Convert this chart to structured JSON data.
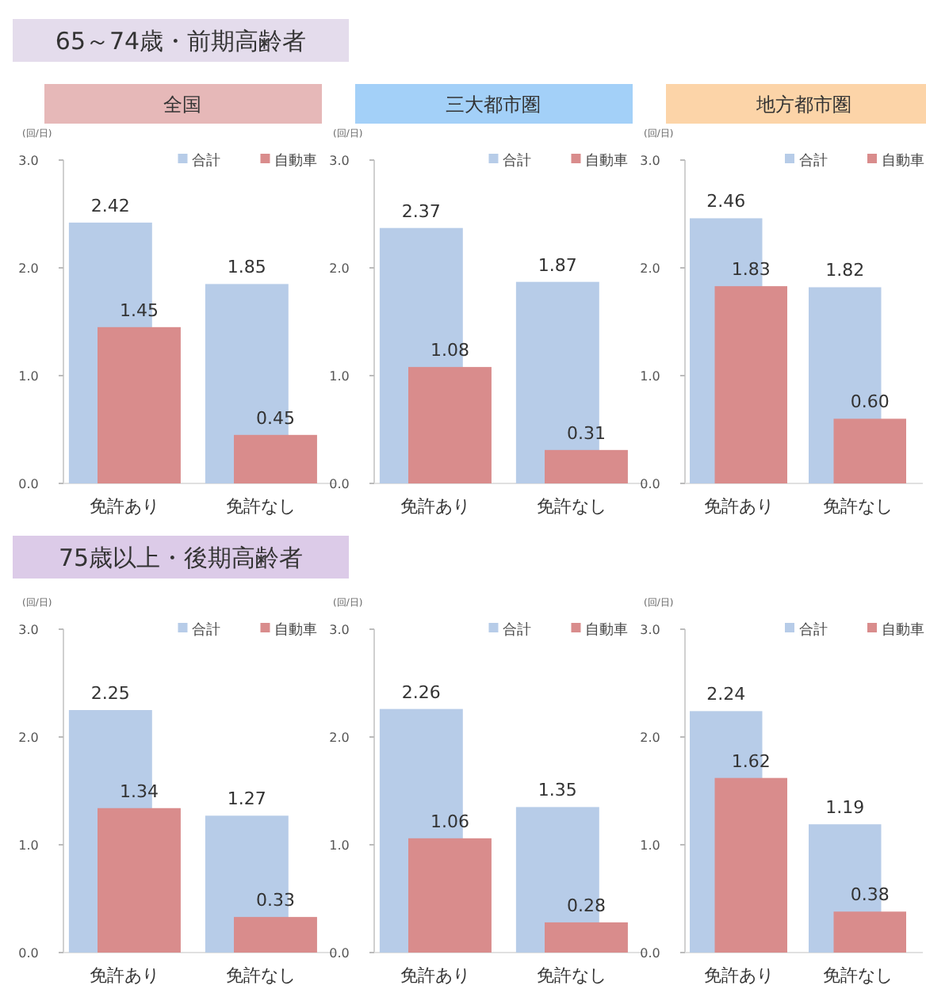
{
  "chart_data": [
    {
      "type": "bar",
      "title": "全国",
      "annotations": [
        "65～74歳・前期高齢者"
      ],
      "ylabel": "(回/日)",
      "categories": [
        "免許あり",
        "免許なし"
      ],
      "ylim": [
        0,
        3
      ],
      "yticks": [
        {
          "value": 0,
          "label": "0.0"
        },
        {
          "value": 1,
          "label": "1.0"
        },
        {
          "value": 2,
          "label": "2.0"
        },
        {
          "value": 3,
          "label": "3.0"
        }
      ],
      "legend": "top right",
      "series": [
        {
          "name": "合計",
          "color": "#b7cce8",
          "values": [
            2.42,
            1.85
          ],
          "value_labels": [
            "2.42",
            "1.85"
          ]
        },
        {
          "name": "自動車",
          "color": "#d98c8c",
          "values": [
            1.45,
            0.45
          ],
          "value_labels": [
            "1.45",
            "0.45"
          ]
        }
      ]
    },
    {
      "type": "bar",
      "title": "三大都市圏",
      "ylabel": "(回/日)",
      "categories": [
        "免許あり",
        "免許なし"
      ],
      "ylim": [
        0,
        3
      ],
      "yticks": [
        {
          "value": 0,
          "label": "0.0"
        },
        {
          "value": 1,
          "label": "1.0"
        },
        {
          "value": 2,
          "label": "2.0"
        },
        {
          "value": 3,
          "label": "3.0"
        }
      ],
      "legend": "top right",
      "series": [
        {
          "name": "合計",
          "color": "#b7cce8",
          "values": [
            2.37,
            1.87
          ],
          "value_labels": [
            "2.37",
            "1.87"
          ]
        },
        {
          "name": "自動車",
          "color": "#d98c8c",
          "values": [
            1.08,
            0.31
          ],
          "value_labels": [
            "1.08",
            "0.31"
          ]
        }
      ]
    },
    {
      "type": "bar",
      "title": "地方都市圏",
      "ylabel": "(回/日)",
      "categories": [
        "免許あり",
        "免許なし"
      ],
      "ylim": [
        0,
        3
      ],
      "yticks": [
        {
          "value": 0,
          "label": "0.0"
        },
        {
          "value": 1,
          "label": "1.0"
        },
        {
          "value": 2,
          "label": "2.0"
        },
        {
          "value": 3,
          "label": "3.0"
        }
      ],
      "legend": "top right",
      "series": [
        {
          "name": "合計",
          "color": "#b7cce8",
          "values": [
            2.46,
            1.82
          ],
          "value_labels": [
            "2.46",
            "1.82"
          ]
        },
        {
          "name": "自動車",
          "color": "#d98c8c",
          "values": [
            1.83,
            0.6
          ],
          "value_labels": [
            "1.83",
            "0.60"
          ]
        }
      ]
    },
    {
      "type": "bar",
      "annotations": [
        "75歳以上・後期高齢者"
      ],
      "ylabel": "(回/日)",
      "categories": [
        "免許あり",
        "免許なし"
      ],
      "ylim": [
        0,
        3
      ],
      "yticks": [
        {
          "value": 0,
          "label": "0.0"
        },
        {
          "value": 1,
          "label": "1.0"
        },
        {
          "value": 2,
          "label": "2.0"
        },
        {
          "value": 3,
          "label": "3.0"
        }
      ],
      "legend": "top right",
      "series": [
        {
          "name": "合計",
          "color": "#b7cce8",
          "values": [
            2.25,
            1.27
          ],
          "value_labels": [
            "2.25",
            "1.27"
          ]
        },
        {
          "name": "自動車",
          "color": "#d98c8c",
          "values": [
            1.34,
            0.33
          ],
          "value_labels": [
            "1.34",
            "0.33"
          ]
        }
      ]
    },
    {
      "type": "bar",
      "ylabel": "(回/日)",
      "categories": [
        "免許あり",
        "免許なし"
      ],
      "ylim": [
        0,
        3
      ],
      "yticks": [
        {
          "value": 0,
          "label": "0.0"
        },
        {
          "value": 1,
          "label": "1.0"
        },
        {
          "value": 2,
          "label": "2.0"
        },
        {
          "value": 3,
          "label": "3.0"
        }
      ],
      "legend": "top right",
      "series": [
        {
          "name": "合計",
          "color": "#b7cce8",
          "values": [
            2.26,
            1.35
          ],
          "value_labels": [
            "2.26",
            "1.35"
          ]
        },
        {
          "name": "自動車",
          "color": "#d98c8c",
          "values": [
            1.06,
            0.28
          ],
          "value_labels": [
            "1.06",
            "0.28"
          ]
        }
      ]
    },
    {
      "type": "bar",
      "ylabel": "(回/日)",
      "categories": [
        "免許あり",
        "免許なし"
      ],
      "ylim": [
        0,
        3
      ],
      "yticks": [
        {
          "value": 0,
          "label": "0.0"
        },
        {
          "value": 1,
          "label": "1.0"
        },
        {
          "value": 2,
          "label": "2.0"
        },
        {
          "value": 3,
          "label": "3.0"
        }
      ],
      "legend": "top right",
      "series": [
        {
          "name": "合計",
          "color": "#b7cce8",
          "values": [
            2.24,
            1.19
          ],
          "value_labels": [
            "2.24",
            "1.19"
          ]
        },
        {
          "name": "自動車",
          "color": "#d98c8c",
          "values": [
            1.62,
            0.38
          ],
          "value_labels": [
            "1.62",
            "0.38"
          ]
        }
      ]
    }
  ]
}
